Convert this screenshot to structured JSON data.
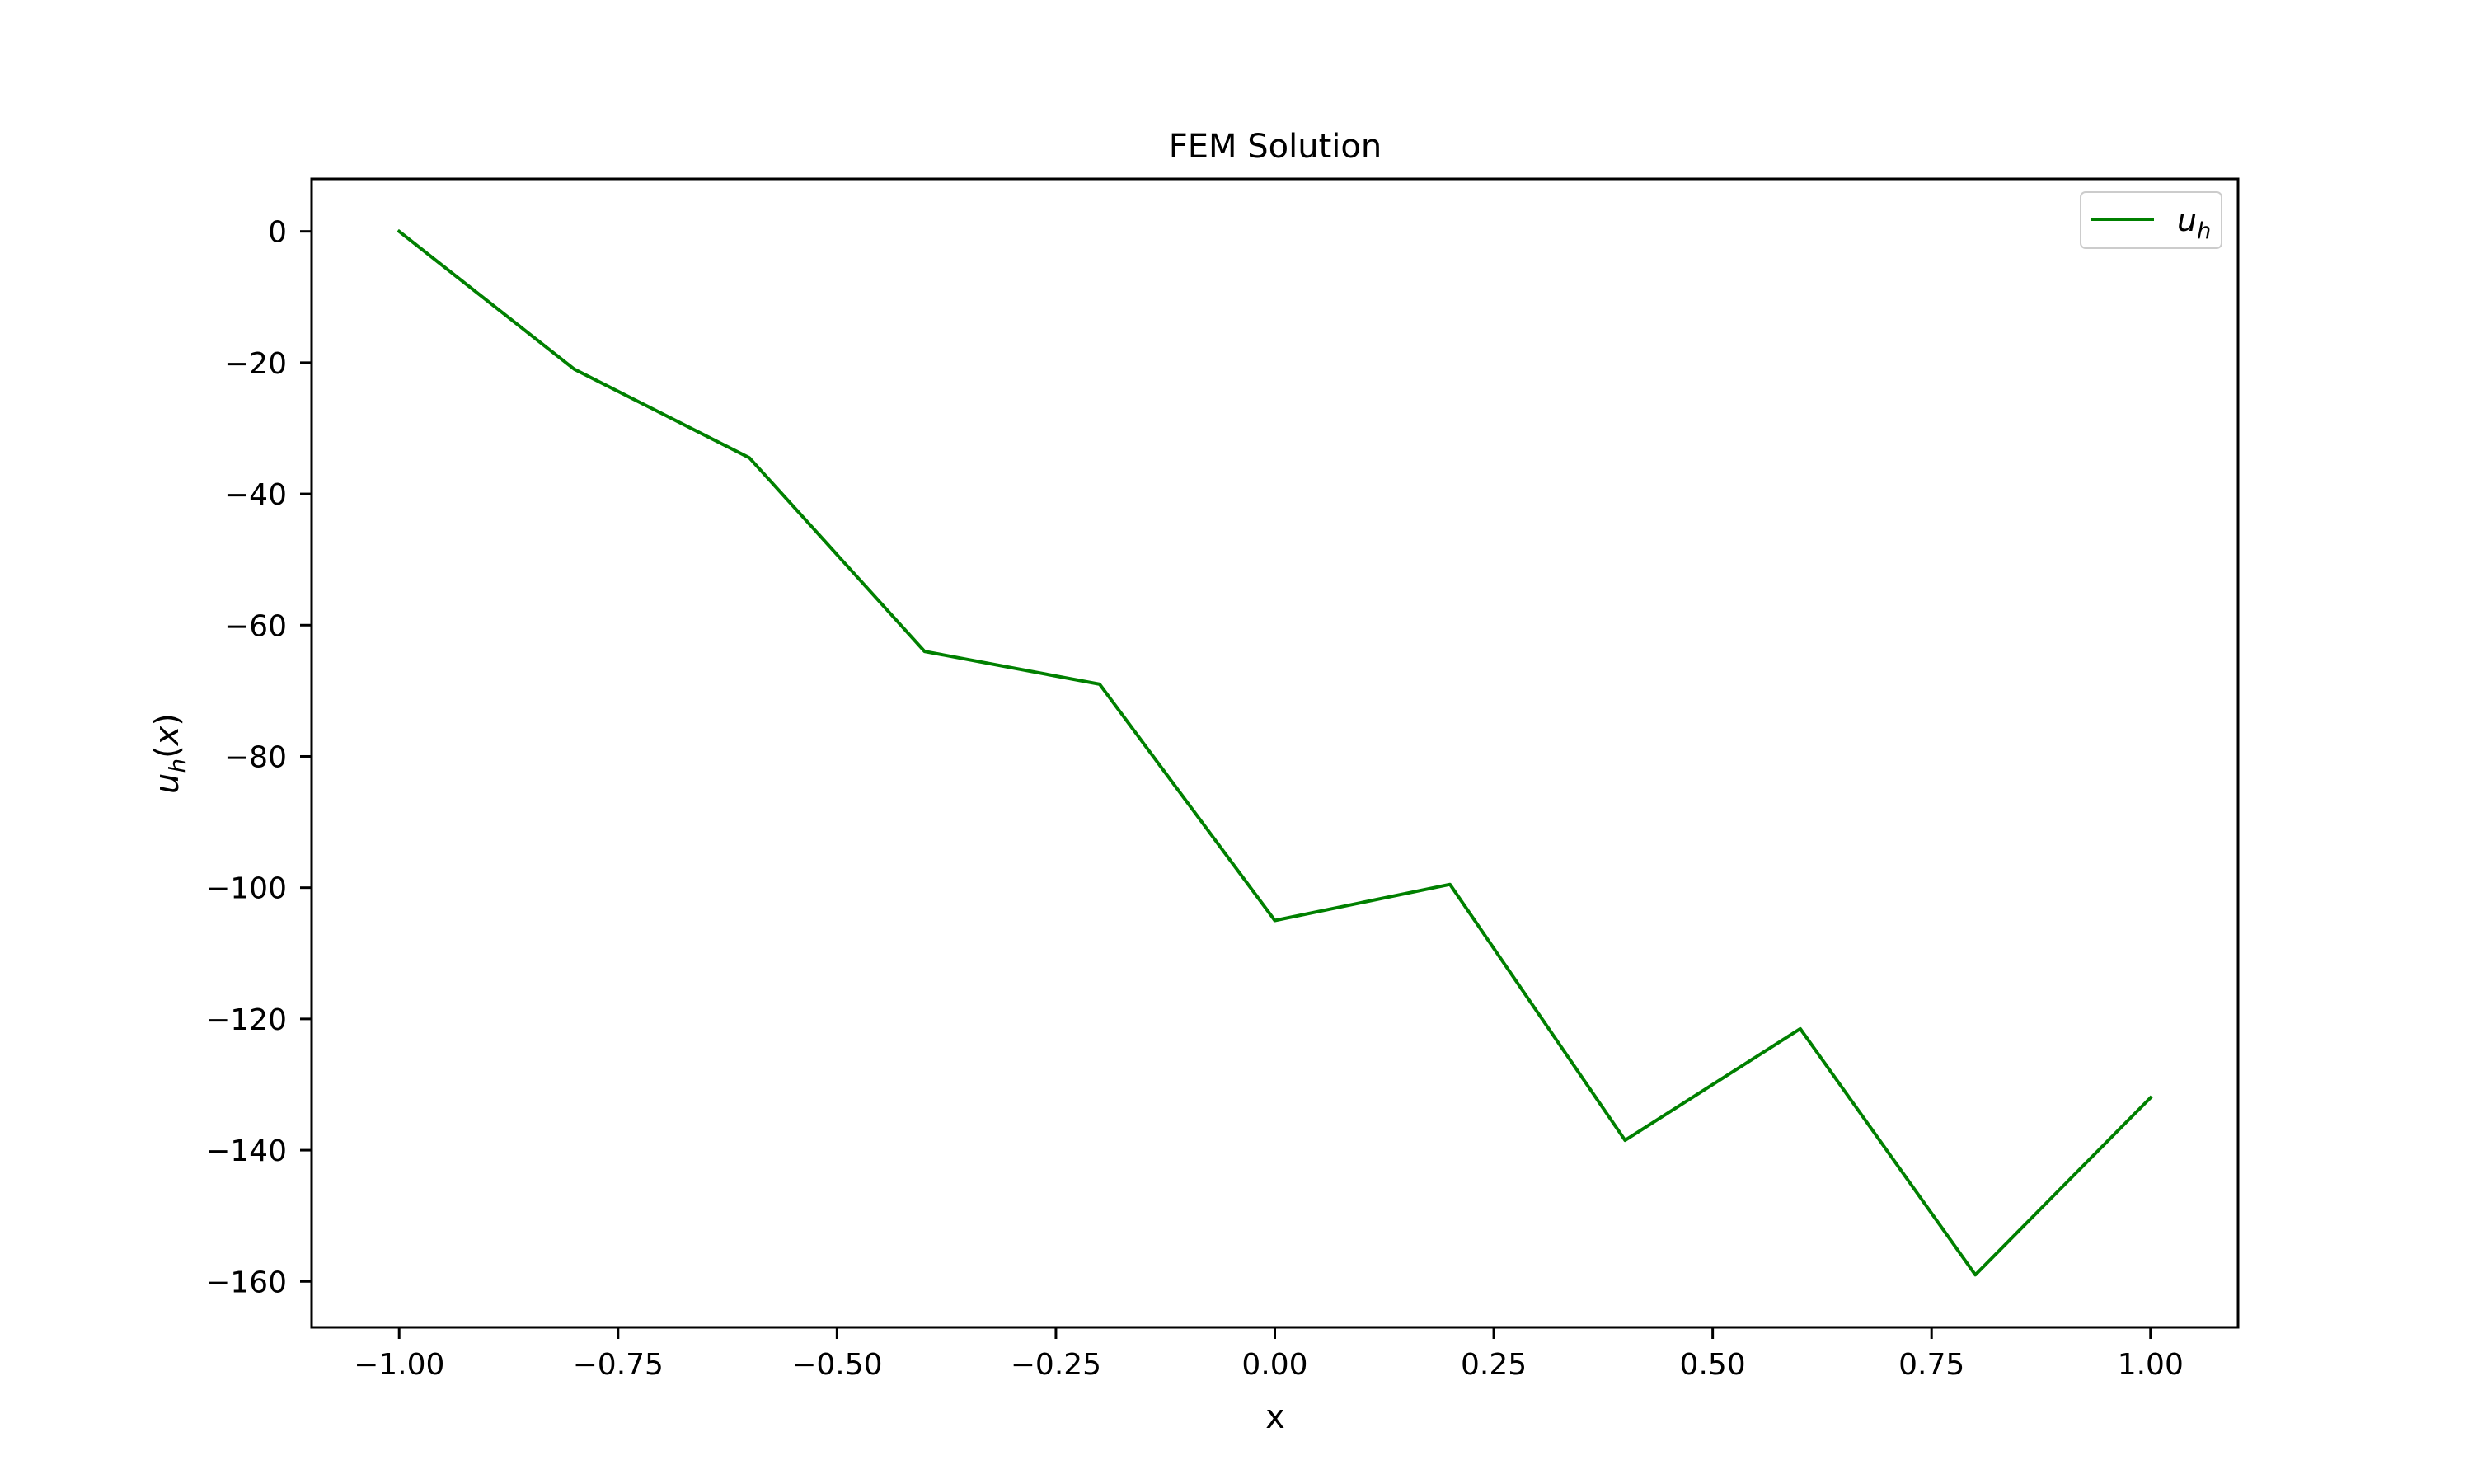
{
  "chart_data": {
    "type": "line",
    "title": "FEM Solution",
    "xlabel": "x",
    "ylabel": "u_h(x)",
    "xlim": [
      -1.1,
      1.1
    ],
    "ylim": [
      -167,
      8
    ],
    "xticks": [
      -1.0,
      -0.75,
      -0.5,
      -0.25,
      0.0,
      0.25,
      0.5,
      0.75,
      1.0
    ],
    "xtick_labels": [
      "−1.00",
      "−0.75",
      "−0.50",
      "−0.25",
      "0.00",
      "0.25",
      "0.50",
      "0.75",
      "1.00"
    ],
    "yticks": [
      0,
      -20,
      -40,
      -60,
      -80,
      -100,
      -120,
      -140,
      -160
    ],
    "ytick_labels": [
      "0",
      "−20",
      "−40",
      "−60",
      "−80",
      "−100",
      "−120",
      "−140",
      "−160"
    ],
    "grid": false,
    "legend_position": "top-right",
    "series": [
      {
        "name": "u_h",
        "color": "#008000",
        "x": [
          -1.0,
          -0.8,
          -0.6,
          -0.4,
          -0.2,
          0.0,
          0.2,
          0.4,
          0.6,
          0.8,
          1.0
        ],
        "y": [
          0,
          -21,
          -34.5,
          -64,
          -69,
          -105,
          -99.5,
          -138.5,
          -121.5,
          -159,
          -132
        ]
      }
    ]
  }
}
